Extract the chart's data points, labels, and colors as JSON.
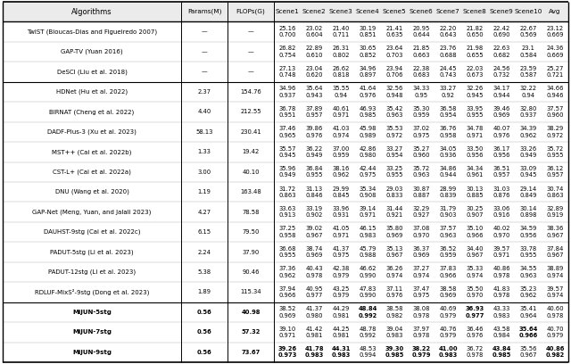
{
  "columns": [
    "Algorithms",
    "Params(M)",
    "FLOPs(G)",
    "Scene1",
    "Scene2",
    "Scene3",
    "Scene4",
    "Scene5",
    "Scene6",
    "Scene7",
    "Scene8",
    "Scene9",
    "Scene10",
    "Avg"
  ],
  "rows": [
    {
      "name": "TwIST (Bioucas-Dias and Figueiredo 2007)",
      "params": "—",
      "flops": "—",
      "vals": [
        "25.16\n0.700",
        "23.02\n0.604",
        "21.40\n0.711",
        "30.19\n0.851",
        "21.41\n0.635",
        "20.95\n0.644",
        "22.20\n0.643",
        "21.82\n0.650",
        "22.42\n0.690",
        "22.67\n0.569",
        "23.12\n0.669"
      ],
      "bold": []
    },
    {
      "name": "GAP-TV (Yuan 2016)",
      "params": "—",
      "flops": "—",
      "vals": [
        "26.82\n0.754",
        "22.89\n0.610",
        "26.31\n0.802",
        "30.65\n0.852",
        "23.64\n0.703",
        "21.85\n0.663",
        "23.76\n0.688",
        "21.98\n0.655",
        "22.63\n0.682",
        "23.1\n0.584",
        "24.36\n0.669"
      ],
      "bold": []
    },
    {
      "name": "DeSCI (Liu et al. 2018)",
      "params": "—",
      "flops": "—",
      "vals": [
        "27.13\n0.748",
        "23.04\n0.620",
        "26.62\n0.818",
        "34.96\n0.897",
        "23.94\n0.706",
        "22.38\n0.683",
        "24.45\n0.743",
        "22.03\n0.673",
        "24.56\n0.732",
        "23.59\n0.587",
        "25.27\n0.721"
      ],
      "bold": []
    },
    {
      "name": "HDNet (Hu et al. 2022)",
      "params": "2.37",
      "flops": "154.76",
      "vals": [
        "34.96\n0.937",
        "35.64\n0.943",
        "35.55\n0.94",
        "41.64\n0.976",
        "32.56\n0.948",
        "34.33\n0.95",
        "33.27\n0.92",
        "32.26\n0.945",
        "34.17\n0.944",
        "32.22\n0.94",
        "34.66\n0.946"
      ],
      "bold": []
    },
    {
      "name": "BIRNAT (Cheng et al. 2022)",
      "params": "4.40",
      "flops": "212.55",
      "vals": [
        "36.78\n0.951",
        "37.89\n0.957",
        "40.61\n0.971",
        "46.93\n0.985",
        "35.42\n0.963",
        "35.30\n0.959",
        "36.58\n0.954",
        "33.95\n0.955",
        "39.46\n0.969",
        "32.80\n0.937",
        "37.57\n0.960"
      ],
      "bold": []
    },
    {
      "name": "DADF-Plus-3 (Xu et al. 2023)",
      "params": "58.13",
      "flops": "230.41",
      "vals": [
        "37.46\n0.965",
        "39.86\n0.976",
        "41.03\n0.974",
        "45.98\n0.989",
        "35.53\n0.972",
        "37.02\n0.975",
        "36.76\n0.958",
        "34.78\n0.971",
        "40.07\n0.976",
        "34.39\n0.962",
        "38.29\n0.972"
      ],
      "bold": []
    },
    {
      "name": "MST++ (Cai et al. 2022b)",
      "params": "1.33",
      "flops": "19.42",
      "vals": [
        "35.57\n0.945",
        "36.22\n0.949",
        "37.00\n0.959",
        "42.86\n0.980",
        "33.27\n0.954",
        "35.27\n0.960",
        "34.05\n0.936",
        "33.50\n0.956",
        "36.17\n0.956",
        "33.26\n0.949",
        "35.72\n0.955"
      ],
      "bold": []
    },
    {
      "name": "CST-L+ (Cai et al. 2022a)",
      "params": "3.00",
      "flops": "40.10",
      "vals": [
        "35.96\n0.949",
        "36.84\n0.955",
        "38.16\n0.962",
        "42.44\n0.975",
        "33.25\n0.955",
        "35.72\n0.963",
        "34.86\n0.944",
        "34.34\n0.961",
        "36.51\n0.957",
        "33.09\n0.945",
        "36.12\n0.957"
      ],
      "bold": []
    },
    {
      "name": "DNU (Wang et al. 2020)",
      "params": "1.19",
      "flops": "163.48",
      "vals": [
        "31.72\n0.863",
        "31.13\n0.846",
        "29.99\n0.845",
        "35.34\n0.908",
        "29.03\n0.833",
        "30.87\n0.887",
        "28.99\n0.839",
        "30.13\n0.885",
        "31.03\n0.876",
        "29.14\n0.849",
        "30.74\n0.863"
      ],
      "bold": []
    },
    {
      "name": "GAP-Net (Meng, Yuan, and Jalali 2023)",
      "params": "4.27",
      "flops": "78.58",
      "vals": [
        "33.63\n0.913",
        "33.19\n0.902",
        "33.96\n0.931",
        "39.14\n0.971",
        "31.44\n0.921",
        "32.29\n0.927",
        "31.79\n0.903",
        "30.25\n0.907",
        "33.06\n0.916",
        "30.14\n0.898",
        "32.89\n0.919"
      ],
      "bold": []
    },
    {
      "name": "DAUHST-9stg (Cai et al. 2022c)",
      "params": "6.15",
      "flops": "79.50",
      "vals": [
        "37.25\n0.958",
        "39.02\n0.967",
        "41.05\n0.971",
        "46.15\n0.983",
        "35.80\n0.969",
        "37.08\n0.970",
        "37.57\n0.963",
        "35.10\n0.966",
        "40.02\n0.970",
        "34.59\n0.956",
        "38.36\n0.967"
      ],
      "bold": []
    },
    {
      "name": "PADUT-5stg (Li et al. 2023)",
      "params": "2.24",
      "flops": "37.90",
      "vals": [
        "36.68\n0.955",
        "38.74\n0.969",
        "41.37\n0.975",
        "45.79\n0.988",
        "35.13\n0.967",
        "36.37\n0.969",
        "36.52\n0.959",
        "34.40\n0.967",
        "39.57\n0.971",
        "33.78\n0.955",
        "37.84\n0.967"
      ],
      "bold": []
    },
    {
      "name": "PADUT-12stg (Li et al. 2023)",
      "params": "5.38",
      "flops": "90.46",
      "vals": [
        "37.36\n0.962",
        "40.43\n0.978",
        "42.38\n0.979",
        "46.62\n0.990",
        "36.26\n0.974",
        "37.27\n0.974",
        "37.83\n0.966",
        "35.33\n0.974",
        "40.86\n0.978",
        "34.55\n0.963",
        "38.89\n0.974"
      ],
      "bold": []
    },
    {
      "name": "RDLUF-MixS²-9stg (Dong et al. 2023)",
      "params": "1.89",
      "flops": "115.34",
      "vals": [
        "37.94\n0.966",
        "40.95\n0.977",
        "43.25\n0.979",
        "47.83\n0.990",
        "37.11\n0.976",
        "37.47\n0.975",
        "38.58\n0.969",
        "35.50\n0.970",
        "41.83\n0.978",
        "35.23\n0.962",
        "39.57\n0.974"
      ],
      "bold": []
    },
    {
      "name": "MiJUN-5stg",
      "params": "0.56",
      "flops": "40.98",
      "vals": [
        "38.52\n0.969",
        "41.37\n0.980",
        "44.29\n0.981",
        "48.84\n0.992",
        "38.58\n0.982",
        "38.08\n0.978",
        "40.69\n0.979",
        "36.93\n0.977",
        "43.33\n0.983",
        "35.41\n0.964",
        "40.60\n0.978"
      ],
      "bold": [
        "Scene4",
        "Scene8"
      ]
    },
    {
      "name": "MiJUN-7stg",
      "params": "0.56",
      "flops": "57.32",
      "vals": [
        "39.10\n0.971",
        "41.42\n0.981",
        "44.25\n0.981",
        "48.78\n0.992",
        "39.04\n0.983",
        "37.97\n0.978",
        "40.76\n0.979",
        "36.46\n0.976",
        "43.58\n0.984",
        "35.64\n0.966",
        "40.70\n0.979"
      ],
      "bold": [
        "Scene10"
      ]
    },
    {
      "name": "MiJUN-9stg",
      "params": "0.56",
      "flops": "73.67",
      "vals": [
        "39.26\n0.973",
        "41.78\n0.983",
        "44.31\n0.983",
        "48.53\n0.994",
        "39.30\n0.985",
        "38.22\n0.979",
        "41.00\n0.983",
        "36.72\n0.978",
        "43.84\n0.985",
        "35.56\n0.967",
        "40.86\n0.982"
      ],
      "bold": [
        "Scene1",
        "Scene2",
        "Scene3",
        "Scene5",
        "Scene6",
        "Scene7",
        "Scene9",
        "Avg"
      ]
    }
  ]
}
